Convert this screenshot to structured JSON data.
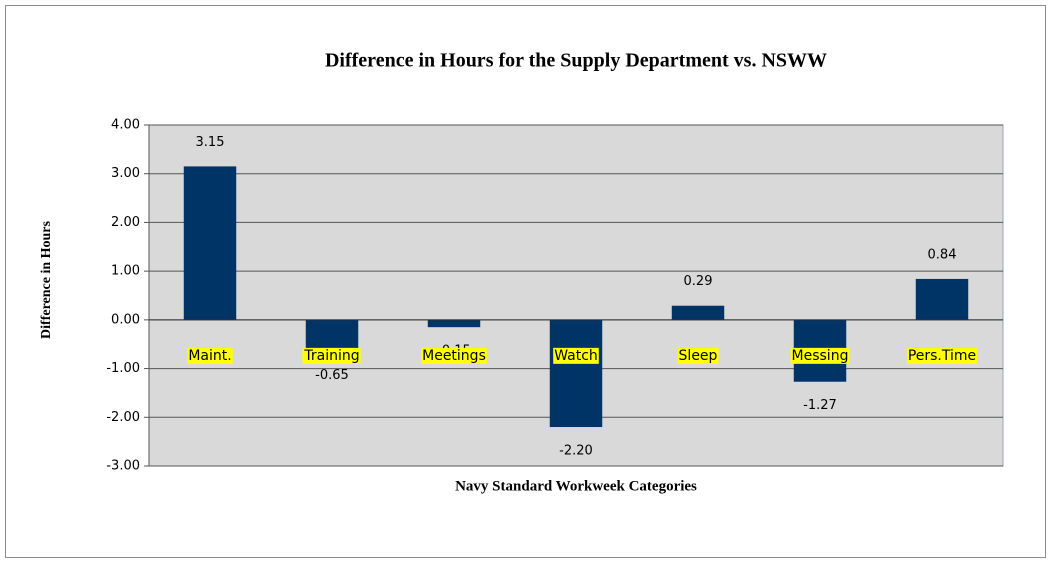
{
  "chart_data": {
    "type": "bar",
    "title": "Difference in Hours for the Supply Department vs. NSWW",
    "x_label": "Navy Standard Workweek Categories",
    "y_label": "Difference in Hours",
    "categories": [
      "Maint.",
      "Training",
      "Meetings",
      "Watch",
      "Sleep",
      "Messing",
      "Pers.Time"
    ],
    "values": [
      3.15,
      -0.65,
      -0.15,
      -2.2,
      0.29,
      -1.27,
      0.84
    ],
    "value_labels": [
      "3.15",
      "-0.65",
      "-0.15",
      "-2.20",
      "0.29",
      "-1.27",
      "0.84"
    ],
    "color": "#003366",
    "ylim": [
      -3,
      4
    ],
    "yticks": [
      {
        "value": -3,
        "label": "-3.00"
      },
      {
        "value": -2,
        "label": "-2.00"
      },
      {
        "value": -1,
        "label": "-1.00"
      },
      {
        "value": 0,
        "label": "0.00"
      },
      {
        "value": 1,
        "label": "1.00"
      },
      {
        "value": 2,
        "label": "2.00"
      },
      {
        "value": 3,
        "label": "3.00"
      },
      {
        "value": 4,
        "label": "4.00"
      }
    ],
    "grid": true
  }
}
